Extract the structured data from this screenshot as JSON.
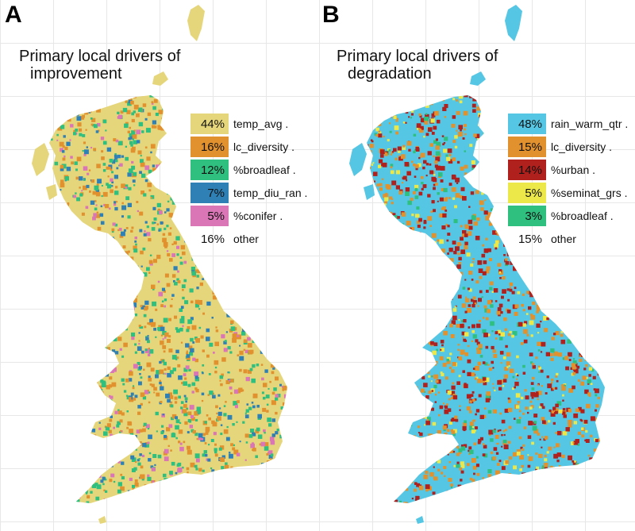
{
  "panel_a": {
    "letter": "A",
    "title_line1": "Primary local drivers of",
    "title_line2": "improvement",
    "base_color": "#e6d67b",
    "legend": [
      {
        "pct": "44%",
        "label": "temp_avg .",
        "color": "#e6d67b"
      },
      {
        "pct": "16%",
        "label": "lc_diversity .",
        "color": "#e1912e"
      },
      {
        "pct": "12%",
        "label": "%broadleaf .",
        "color": "#2fbf7f"
      },
      {
        "pct": "7%",
        "label": "temp_diu_ran .",
        "color": "#2f80b5"
      },
      {
        "pct": "5%",
        "label": "%conifer .",
        "color": "#db76b6"
      },
      {
        "pct": "16%",
        "label": "other",
        "color": ""
      }
    ]
  },
  "panel_b": {
    "letter": "B",
    "title_line1": "Primary local drivers of",
    "title_line2": "degradation",
    "base_color": "#55c6e3",
    "legend": [
      {
        "pct": "48%",
        "label": "rain_warm_qtr .",
        "color": "#55c6e3"
      },
      {
        "pct": "15%",
        "label": "lc_diversity .",
        "color": "#e1912e"
      },
      {
        "pct": "14%",
        "label": "%urban .",
        "color": "#b0201c"
      },
      {
        "pct": "5%",
        "label": "%seminat_grs .",
        "color": "#ece84a"
      },
      {
        "pct": "3%",
        "label": "%broadleaf .",
        "color": "#2fbf7f"
      },
      {
        "pct": "15%",
        "label": "other",
        "color": ""
      }
    ]
  }
}
